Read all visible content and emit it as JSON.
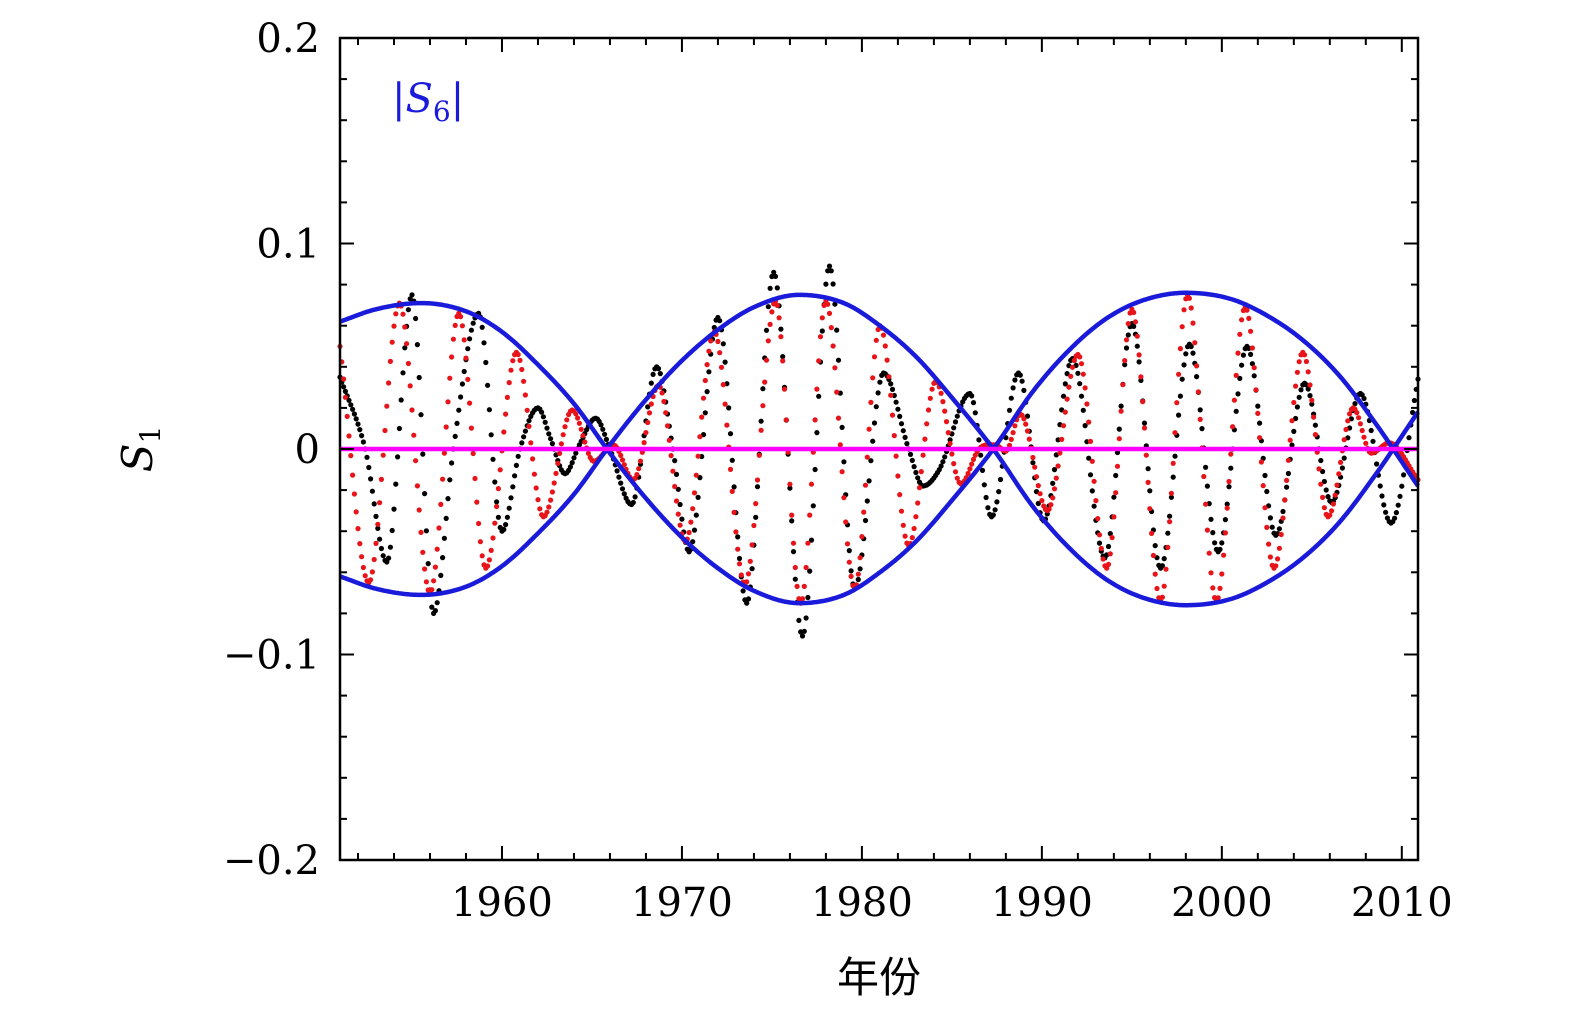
{
  "chart_data": {
    "type": "scatter",
    "xlabel": "年份",
    "ylabel": "S1",
    "ylabel_main": "S",
    "ylabel_sub": "1",
    "xlim": [
      1951,
      2010.9
    ],
    "ylim": [
      -0.2,
      0.2
    ],
    "x_ticks": [
      1960,
      1970,
      1980,
      1990,
      2000,
      2010
    ],
    "x_tick_labels": [
      "1960",
      "1970",
      "1980",
      "1990",
      "2000",
      "2010"
    ],
    "y_ticks": [
      -0.2,
      -0.1,
      0,
      0.1,
      0.2
    ],
    "y_tick_labels": [
      "−0.2",
      "−0.1",
      "0",
      "0.1",
      "0.2"
    ],
    "grid": false,
    "annotation": {
      "text": "|S6|",
      "parts": [
        "|S",
        "6",
        "|"
      ],
      "color": "#1a1adb",
      "position": "top-left"
    },
    "series": [
      {
        "name": "|S6|",
        "style": "line",
        "color": "#1a1adb",
        "symmetric": true,
        "x": [
          1951.0,
          1953.0,
          1955.5,
          1958.0,
          1960.0,
          1962.0,
          1964.0,
          1966.0,
          1968.0,
          1970.0,
          1972.0,
          1974.0,
          1976.5,
          1979.0,
          1981.0,
          1983.0,
          1985.0,
          1987.3,
          1989.5,
          1991.5,
          1993.5,
          1995.5,
          1998.0,
          2000.5,
          2002.5,
          2004.5,
          2006.5,
          2008.5,
          2010.9
        ],
        "values": [
          0.062,
          0.068,
          0.071,
          0.067,
          0.057,
          0.041,
          0.022,
          -0.002,
          -0.024,
          -0.043,
          -0.058,
          -0.069,
          -0.075,
          -0.071,
          -0.06,
          -0.045,
          -0.025,
          0.0,
          0.028,
          0.048,
          0.063,
          0.072,
          0.076,
          0.073,
          0.065,
          0.053,
          0.036,
          0.013,
          -0.018
        ]
      },
      {
        "name": "",
        "style": "dots",
        "color": "#000000",
        "x": [
          1951.0,
          1952.4,
          1953.6,
          1955.0,
          1956.2,
          1957.3,
          1958.7,
          1960.0,
          1961.0,
          1962.0,
          1962.7,
          1963.5,
          1964.3,
          1965.2,
          1966.0,
          1967.2,
          1968.6,
          1969.5,
          1970.4,
          1972.0,
          1973.6,
          1975.1,
          1976.7,
          1978.2,
          1979.6,
          1981.2,
          1982.6,
          1983.4,
          1984.3,
          1986.0,
          1987.2,
          1988.7,
          1990.1,
          1991.7,
          1993.5,
          1995.0,
          1996.6,
          1998.2,
          1999.8,
          2001.4,
          2003.0,
          2004.6,
          2006.1,
          2007.7,
          2009.4,
          2010.9
        ],
        "values": [
          0.035,
          0.0,
          -0.055,
          0.075,
          -0.08,
          0.0,
          0.066,
          -0.04,
          0.0,
          0.02,
          0.005,
          -0.012,
          0.002,
          0.015,
          0.0,
          -0.027,
          0.04,
          0.0,
          -0.05,
          0.064,
          -0.075,
          0.086,
          -0.091,
          0.089,
          -0.068,
          0.037,
          0.0,
          -0.018,
          -0.01,
          0.027,
          -0.033,
          0.037,
          -0.035,
          0.044,
          -0.053,
          0.061,
          -0.058,
          0.051,
          -0.05,
          0.05,
          -0.042,
          0.032,
          -0.026,
          0.027,
          -0.036,
          0.034
        ]
      },
      {
        "name": "",
        "style": "dots",
        "color": "#e8141a",
        "x": [
          1951.0,
          1952.6,
          1954.3,
          1956.0,
          1957.6,
          1959.1,
          1960.8,
          1962.3,
          1963.9,
          1965.1,
          1966.2,
          1967.3,
          1968.7,
          1970.2,
          1971.8,
          1973.5,
          1975.2,
          1976.6,
          1978.0,
          1979.6,
          1981.0,
          1982.6,
          1984.1,
          1985.5,
          1986.5,
          1987.4,
          1988.0,
          1988.8,
          1990.3,
          1992.0,
          1993.6,
          1995.0,
          1996.6,
          1998.1,
          1999.7,
          2001.3,
          2002.9,
          2004.5,
          2005.9,
          2007.3,
          2008.3,
          2009.3,
          2010.9
        ],
        "values": [
          0.05,
          -0.065,
          0.071,
          -0.07,
          0.066,
          -0.058,
          0.047,
          -0.033,
          0.019,
          -0.006,
          0.002,
          -0.015,
          0.031,
          -0.045,
          0.057,
          -0.066,
          0.072,
          -0.075,
          0.072,
          -0.068,
          0.06,
          -0.047,
          0.033,
          -0.017,
          0.0,
          0.002,
          -0.001,
          0.017,
          -0.03,
          0.046,
          -0.058,
          0.068,
          -0.074,
          0.075,
          -0.074,
          0.069,
          -0.058,
          0.047,
          -0.033,
          0.02,
          -0.002,
          0.003,
          -0.015
        ]
      },
      {
        "name": "",
        "style": "line",
        "color": "#ff00ff",
        "x": [
          1951.0,
          2010.9
        ],
        "values": [
          0,
          0
        ]
      }
    ]
  }
}
